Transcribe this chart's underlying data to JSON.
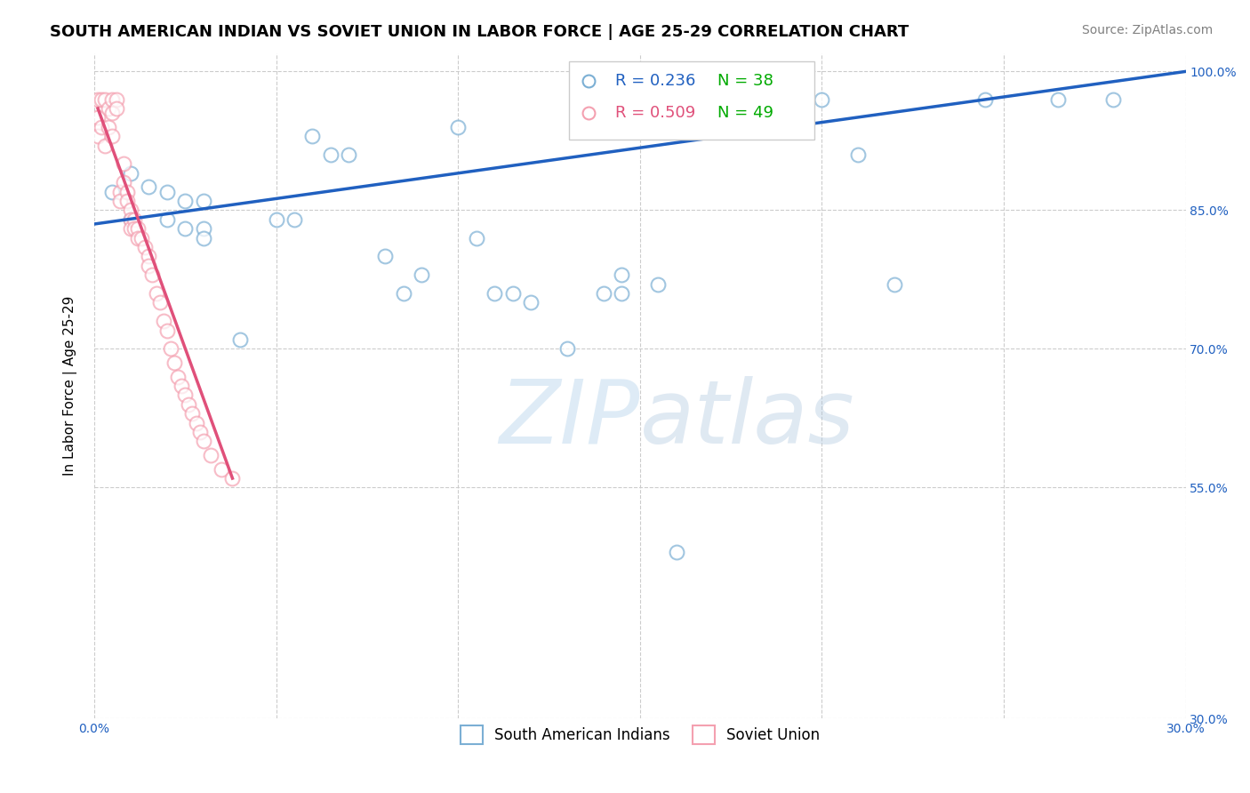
{
  "title": "SOUTH AMERICAN INDIAN VS SOVIET UNION IN LABOR FORCE | AGE 25-29 CORRELATION CHART",
  "source": "Source: ZipAtlas.com",
  "xlabel": "",
  "ylabel": "In Labor Force | Age 25-29",
  "watermark_zip": "ZIP",
  "watermark_atlas": "atlas",
  "xlim": [
    0.0,
    0.3
  ],
  "ylim": [
    0.3,
    1.02
  ],
  "x_ticks": [
    0.0,
    0.05,
    0.1,
    0.15,
    0.2,
    0.25,
    0.3
  ],
  "y_ticks": [
    0.3,
    0.55,
    0.7,
    0.85,
    1.0
  ],
  "y_tick_labels": [
    "30.0%",
    "55.0%",
    "70.0%",
    "85.0%",
    "100.0%"
  ],
  "legend_blue_r": "R = 0.236",
  "legend_blue_n": "N = 38",
  "legend_pink_r": "R = 0.509",
  "legend_pink_n": "N = 49",
  "legend_label_blue": "South American Indians",
  "legend_label_pink": "Soviet Union",
  "blue_color": "#7bafd4",
  "pink_color": "#f4a0b0",
  "trendline_blue_color": "#2060c0",
  "trendline_pink_color": "#e0507a",
  "n_color": "#00aa00",
  "blue_scatter_x": [
    0.005,
    0.01,
    0.01,
    0.015,
    0.02,
    0.02,
    0.025,
    0.025,
    0.03,
    0.03,
    0.03,
    0.04,
    0.05,
    0.055,
    0.06,
    0.065,
    0.07,
    0.08,
    0.085,
    0.09,
    0.1,
    0.105,
    0.11,
    0.115,
    0.12,
    0.13,
    0.14,
    0.145,
    0.145,
    0.155,
    0.16,
    0.19,
    0.2,
    0.21,
    0.22,
    0.245,
    0.265,
    0.28
  ],
  "blue_scatter_y": [
    0.87,
    0.89,
    0.84,
    0.875,
    0.87,
    0.84,
    0.83,
    0.86,
    0.83,
    0.82,
    0.86,
    0.71,
    0.84,
    0.84,
    0.93,
    0.91,
    0.91,
    0.8,
    0.76,
    0.78,
    0.94,
    0.82,
    0.76,
    0.76,
    0.75,
    0.7,
    0.76,
    0.76,
    0.78,
    0.77,
    0.48,
    0.97,
    0.97,
    0.91,
    0.77,
    0.97,
    0.97,
    0.97
  ],
  "pink_scatter_x": [
    0.001,
    0.001,
    0.001,
    0.002,
    0.002,
    0.003,
    0.003,
    0.004,
    0.004,
    0.005,
    0.005,
    0.005,
    0.006,
    0.006,
    0.007,
    0.007,
    0.008,
    0.008,
    0.009,
    0.009,
    0.01,
    0.01,
    0.01,
    0.011,
    0.011,
    0.012,
    0.012,
    0.013,
    0.014,
    0.015,
    0.015,
    0.016,
    0.017,
    0.018,
    0.019,
    0.02,
    0.021,
    0.022,
    0.023,
    0.024,
    0.025,
    0.026,
    0.027,
    0.028,
    0.029,
    0.03,
    0.032,
    0.035,
    0.038
  ],
  "pink_scatter_y": [
    0.97,
    0.95,
    0.93,
    0.97,
    0.94,
    0.97,
    0.92,
    0.96,
    0.94,
    0.97,
    0.955,
    0.93,
    0.97,
    0.96,
    0.87,
    0.86,
    0.9,
    0.88,
    0.87,
    0.86,
    0.85,
    0.84,
    0.83,
    0.84,
    0.83,
    0.83,
    0.82,
    0.82,
    0.81,
    0.8,
    0.79,
    0.78,
    0.76,
    0.75,
    0.73,
    0.72,
    0.7,
    0.685,
    0.67,
    0.66,
    0.65,
    0.64,
    0.63,
    0.62,
    0.61,
    0.6,
    0.585,
    0.57,
    0.56
  ],
  "blue_trend_x": [
    0.0,
    0.3
  ],
  "blue_trend_y": [
    0.835,
    1.0
  ],
  "pink_trend_x": [
    0.001,
    0.038
  ],
  "pink_trend_y": [
    0.96,
    0.56
  ],
  "grid_color": "#cccccc",
  "background_color": "#ffffff",
  "title_fontsize": 13,
  "axis_label_fontsize": 11,
  "tick_fontsize": 10,
  "source_fontsize": 10
}
